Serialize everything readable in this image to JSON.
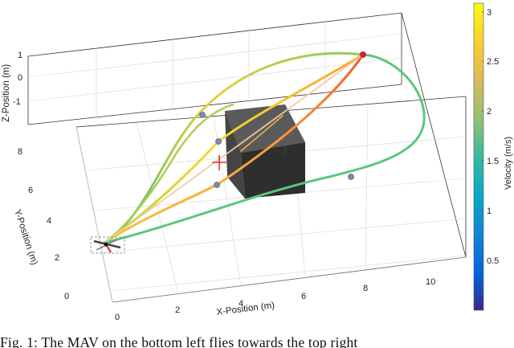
{
  "figure": {
    "x_axis_label": "X-Position (m)",
    "y_axis_label": "Y-Position (m)",
    "z_axis_label": "Z-Position (m)",
    "x_ticks": [
      "0",
      "2",
      "4",
      "6",
      "8",
      "10"
    ],
    "y_ticks": [
      "0",
      "2",
      "4",
      "6",
      "8"
    ],
    "z_ticks": [
      "1",
      "0",
      "-1"
    ],
    "colorbar": {
      "label": "Velocity (m/s)",
      "ticks": [
        "3",
        "2.5",
        "2",
        "1.5",
        "1",
        "0.5"
      ],
      "range": [
        0,
        3.1
      ],
      "colormap": "parula"
    },
    "obstacle_color": "#3c3c3c",
    "goal_marker_color": "#e3342f"
  },
  "caption": {
    "text": "Fig. 1: The MAV on the bottom left flies towards the top right"
  }
}
